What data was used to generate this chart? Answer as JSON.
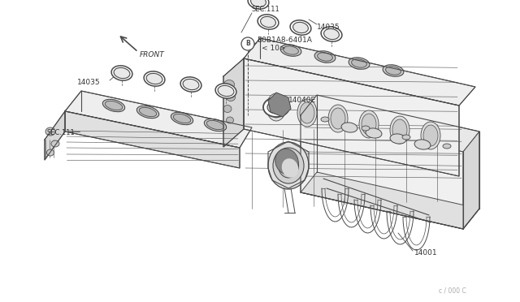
{
  "bg_color": "#ffffff",
  "line_color": "#4a4a4a",
  "fill_color": "#f5f5f5",
  "fig_width": 6.4,
  "fig_height": 3.72,
  "dpi": 100,
  "labels": {
    "bolt_label": "B0B1A8-6401A",
    "bolt_num": "< 10>",
    "gasket_label": "14040E",
    "left_gasket": "14035",
    "right_gasket": "14035",
    "manifold_label": "14001",
    "sec111_left": "SEC.111",
    "sec111_right": "SEC.111",
    "front_label": "FRONT",
    "watermark": "c / 000 C"
  }
}
